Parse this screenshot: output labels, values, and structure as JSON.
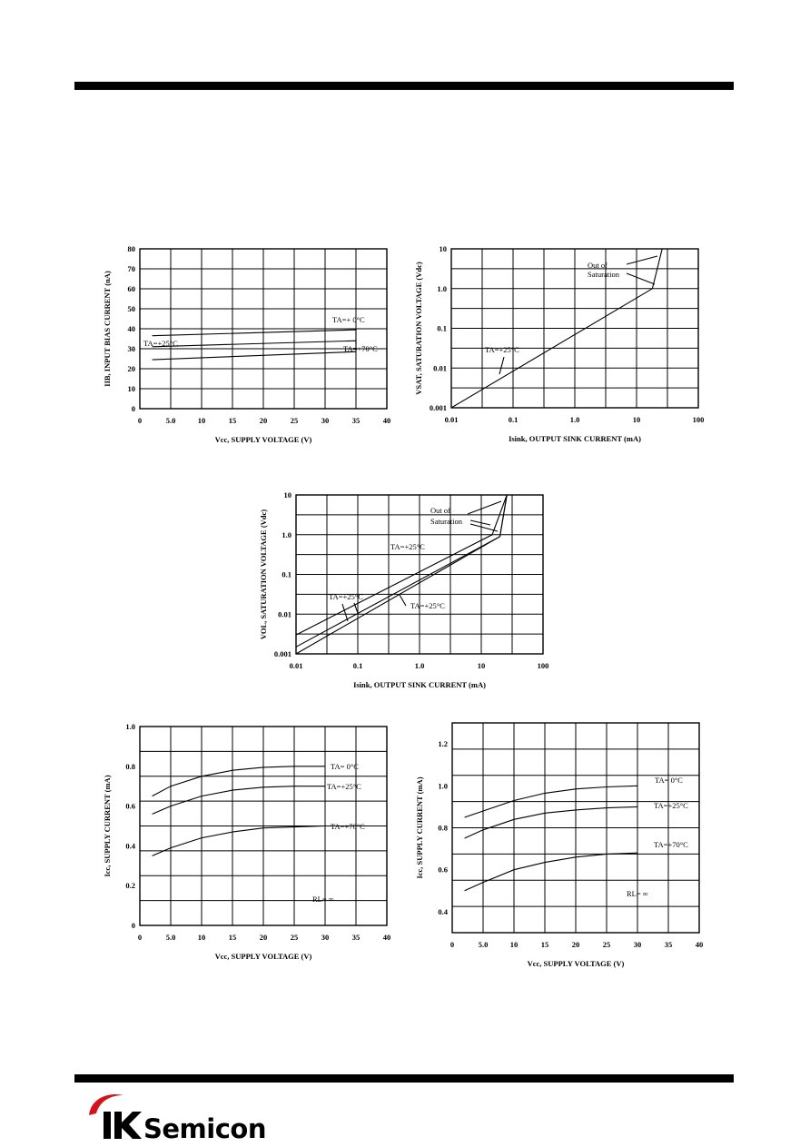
{
  "logo": {
    "brand_text": "Semicon",
    "mark_text": "IK",
    "accent_color": "#d4141c"
  },
  "chart_data": [
    {
      "type": "line",
      "xlabel": "Vcc, SUPPLY VOLTAGE (V)",
      "ylabel": "IIB, INPUT BIAS CURRENT (nA)",
      "x_ticks": [
        "0",
        "5.0",
        "10",
        "15",
        "20",
        "25",
        "30",
        "35",
        "40"
      ],
      "y_ticks": [
        "0",
        "10",
        "20",
        "30",
        "40",
        "50",
        "60",
        "70",
        "80"
      ],
      "xlim": [
        0,
        40
      ],
      "ylim": [
        0,
        80
      ],
      "x_scale": "linear",
      "y_scale": "linear",
      "grid": true,
      "series": [
        {
          "name": "TA=+ 0°C",
          "x": [
            2,
            35,
            35
          ],
          "y": [
            36.5,
            39.5,
            32.5
          ]
        },
        {
          "name": "TA=+25°C",
          "x": [
            2,
            35,
            35
          ],
          "y": [
            31,
            34,
            28.5
          ]
        },
        {
          "name": "TA=+70°C",
          "x": [
            2,
            35
          ],
          "y": [
            24.5,
            28.5
          ]
        }
      ],
      "annotations": [
        "TA=+ 0°C",
        "TA=+25°C",
        "TA=+70°C"
      ]
    },
    {
      "type": "line",
      "xlabel": "Isink, OUTPUT SINK CURRENT (mA)",
      "ylabel": "VSAT, SATURATION VOLTAGE (Vdc)",
      "x_ticks": [
        "0.01",
        "0.1",
        "1.0",
        "10",
        "100"
      ],
      "y_ticks": [
        "0.001",
        "0.01",
        "0.1",
        "1.0",
        "10"
      ],
      "xlim": [
        0.01,
        100
      ],
      "ylim": [
        0.001,
        10
      ],
      "x_scale": "log",
      "y_scale": "log",
      "grid": true,
      "series": [
        {
          "name": "TA=+25°C",
          "x": [
            0.01,
            18,
            26
          ],
          "y": [
            0.001,
            1.0,
            10
          ]
        }
      ],
      "annotations": [
        "TA=+25°C",
        "Out of",
        "Saturation"
      ]
    },
    {
      "type": "line",
      "xlabel": "Isink, OUTPUT SINK CURRENT (mA)",
      "ylabel": "VOL, SATURATION VOLTAGE (Vdc)",
      "x_ticks": [
        "0.01",
        "0.1",
        "1.0",
        "10",
        "100"
      ],
      "y_ticks": [
        "0.001",
        "0.01",
        "0.1",
        "1.0",
        "10"
      ],
      "xlim": [
        0.01,
        100
      ],
      "ylim": [
        0.001,
        10
      ],
      "x_scale": "log",
      "y_scale": "log",
      "grid": true,
      "series": [
        {
          "name": "TA=+25°C",
          "x": [
            0.01,
            15,
            26
          ],
          "y": [
            0.003,
            1.0,
            10
          ]
        },
        {
          "name": "TA=+25°C",
          "x": [
            0.01,
            20,
            26
          ],
          "y": [
            0.0015,
            0.9,
            10
          ]
        },
        {
          "name": "TA=+25°C",
          "x": [
            0.01,
            20,
            26
          ],
          "y": [
            0.001,
            0.9,
            10
          ]
        }
      ],
      "annotations": [
        "TA=+25°C",
        "TA=+25°C",
        "TA=+25°C",
        "Out of",
        "Saturation"
      ]
    },
    {
      "type": "line",
      "xlabel": "Vcc, SUPPLY VOLTAGE (V)",
      "ylabel": "Icc, SUPPLY CURRENT (mA)",
      "x_ticks": [
        "0",
        "5.0",
        "10",
        "15",
        "20",
        "25",
        "30",
        "35",
        "40"
      ],
      "y_ticks": [
        "0",
        "0.2",
        "0.4",
        "0.6",
        "0.8",
        "1.0"
      ],
      "xlim": [
        0,
        40
      ],
      "ylim": [
        0,
        1.0
      ],
      "x_scale": "linear",
      "y_scale": "linear",
      "grid": true,
      "series": [
        {
          "name": "TA=   0°C",
          "x": [
            2,
            5,
            10,
            15,
            20,
            25,
            30
          ],
          "y": [
            0.65,
            0.7,
            0.75,
            0.78,
            0.795,
            0.8,
            0.8
          ]
        },
        {
          "name": "TA=+25°C",
          "x": [
            2,
            5,
            10,
            15,
            20,
            25,
            30
          ],
          "y": [
            0.56,
            0.6,
            0.65,
            0.68,
            0.695,
            0.7,
            0.7
          ]
        },
        {
          "name": "TA=+70°C",
          "x": [
            2,
            5,
            10,
            15,
            20,
            25,
            30
          ],
          "y": [
            0.35,
            0.39,
            0.44,
            0.47,
            0.49,
            0.495,
            0.5
          ]
        }
      ],
      "annotations": [
        "TA=   0°C",
        "TA=+25°C",
        "TA=+70°C",
        "RL= ∞"
      ]
    },
    {
      "type": "line",
      "xlabel": "Vcc, SUPPLY VOLTAGE (V)",
      "ylabel": "Icc, SUPPLY CURRENT (mA)",
      "x_ticks": [
        "0",
        "5.0",
        "10",
        "15",
        "20",
        "25",
        "30",
        "35",
        "40"
      ],
      "y_ticks": [
        "0.4",
        "0.6",
        "0.8",
        "1.0",
        "1.2"
      ],
      "xlim": [
        0,
        40
      ],
      "ylim": [
        0.3,
        1.3
      ],
      "x_scale": "linear",
      "y_scale": "linear",
      "grid": true,
      "series": [
        {
          "name": "TA=   0°C",
          "x": [
            2,
            5,
            10,
            15,
            20,
            25,
            30
          ],
          "y": [
            0.85,
            0.88,
            0.93,
            0.965,
            0.985,
            0.995,
            1.0
          ]
        },
        {
          "name": "TA=+25°C",
          "x": [
            2,
            5,
            10,
            15,
            20,
            25,
            30
          ],
          "y": [
            0.75,
            0.79,
            0.84,
            0.87,
            0.885,
            0.895,
            0.9
          ]
        },
        {
          "name": "TA=+70°C",
          "x": [
            2,
            5,
            10,
            15,
            20,
            25,
            30
          ],
          "y": [
            0.5,
            0.54,
            0.6,
            0.635,
            0.66,
            0.675,
            0.68
          ]
        }
      ],
      "annotations": [
        "TA=   0°C",
        "TA=+25°C",
        "TA=+70°C",
        "RL= ∞"
      ]
    }
  ]
}
